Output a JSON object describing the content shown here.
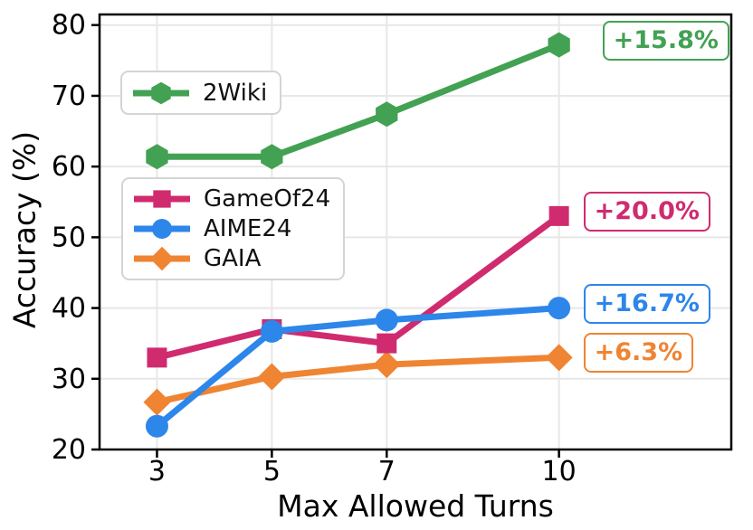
{
  "chart_data": {
    "type": "line",
    "title": "",
    "xlabel": "Max Allowed Turns",
    "ylabel": "Accuracy (%)",
    "x": [
      3,
      5,
      7,
      10
    ],
    "xticks": [
      3,
      5,
      7,
      10
    ],
    "yticks": [
      20,
      30,
      40,
      50,
      60,
      70,
      80
    ],
    "xlim": [
      2,
      13
    ],
    "ylim": [
      20,
      81.5
    ],
    "grid": true,
    "legend_position": "two boxes, upper-left inside plot",
    "series": [
      {
        "name": "2Wiki",
        "color": "#43a153",
        "marker": "hexagon",
        "values": [
          61.4,
          61.4,
          67.4,
          77.2
        ],
        "annotation": "+15.8%"
      },
      {
        "name": "GameOf24",
        "color": "#d02b6e",
        "marker": "square",
        "values": [
          33.0,
          37.0,
          35.0,
          53.0
        ],
        "annotation": "+20.0%"
      },
      {
        "name": "AIME24",
        "color": "#2d86ea",
        "marker": "circle",
        "values": [
          23.3,
          36.7,
          38.3,
          40.0
        ],
        "annotation": "+16.7%"
      },
      {
        "name": "GAIA",
        "color": "#ef8432",
        "marker": "diamond",
        "values": [
          26.7,
          30.3,
          32.0,
          33.0
        ],
        "annotation": "+6.3%"
      }
    ]
  },
  "colors": {
    "background": "#ffffff",
    "grid": "#e7e7e7",
    "spine": "#000000",
    "tick_label": "#000000",
    "legend_border": "#d4d4d4"
  }
}
